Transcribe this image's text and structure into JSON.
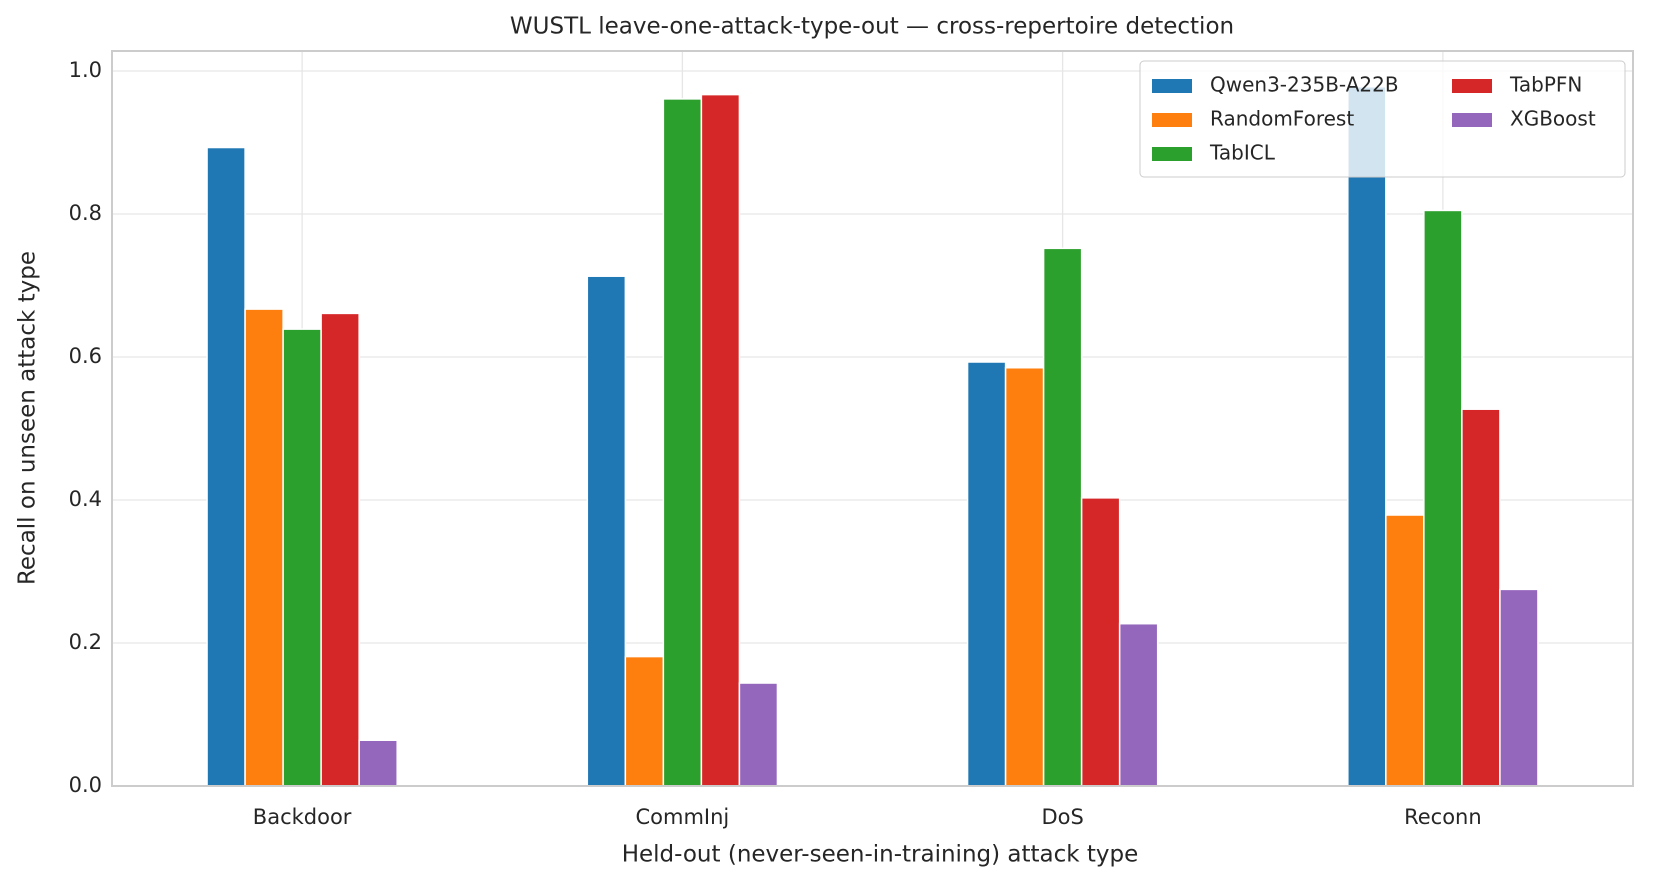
{
  "chart_data": {
    "type": "bar",
    "title": "WUSTL leave-one-attack-type-out — cross-repertoire detection",
    "x_label": "Held-out (never-seen-in-training) attack type",
    "y_label": "Recall on unseen attack type",
    "categories": [
      "Backdoor",
      "CommInj",
      "DoS",
      "Reconn"
    ],
    "series": [
      {
        "name": "Qwen3-235B-A22B",
        "color": "#1f77b4",
        "values": [
          0.893,
          0.713,
          0.593,
          0.978
        ]
      },
      {
        "name": "RandomForest",
        "color": "#ff7f0e",
        "values": [
          0.667,
          0.181,
          0.585,
          0.379
        ]
      },
      {
        "name": "TabICL",
        "color": "#2ca02c",
        "values": [
          0.639,
          0.961,
          0.752,
          0.805
        ]
      },
      {
        "name": "TabPFN",
        "color": "#d62728",
        "values": [
          0.661,
          0.967,
          0.403,
          0.527
        ]
      },
      {
        "name": "XGBoost",
        "color": "#9467bd",
        "values": [
          0.064,
          0.144,
          0.227,
          0.275
        ]
      }
    ],
    "ylim": [
      0,
      1.028
    ],
    "yticks": [
      {
        "value": 0,
        "label": "0.0"
      },
      {
        "value": 0.2,
        "label": "0.2"
      },
      {
        "value": 0.4,
        "label": "0.4"
      },
      {
        "value": 0.6,
        "label": "0.6"
      },
      {
        "value": 0.8,
        "label": "0.8"
      },
      {
        "value": 1,
        "label": "1.0"
      }
    ],
    "grid": true,
    "legend": "upper right"
  }
}
